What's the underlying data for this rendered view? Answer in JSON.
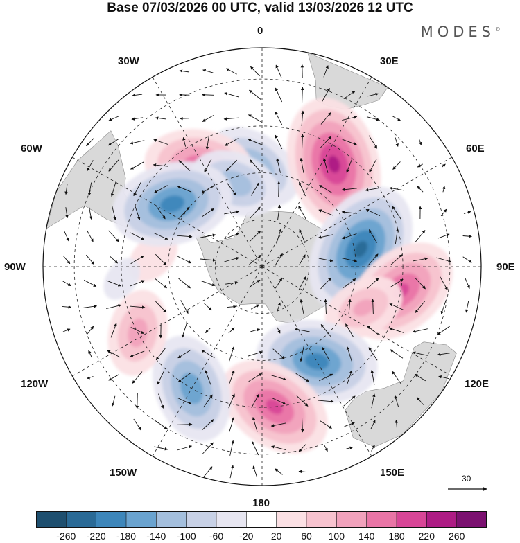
{
  "title": "Base 07/03/2026 00 UTC, valid 13/03/2026 12 UTC",
  "brand": "MODES",
  "brand_mark": "©",
  "longitude_labels": {
    "n0": "0",
    "e30": "30E",
    "e60": "60E",
    "e90": "90E",
    "e120": "120E",
    "e150": "150E",
    "s180": "180",
    "w150": "150W",
    "w120": "120W",
    "w90": "90W",
    "w60": "60W",
    "w30": "30W"
  },
  "reference_vector": {
    "label": "30"
  },
  "colors": {
    "neg_260": "#1e4f6f",
    "neg_220": "#2a6a96",
    "neg_180": "#3d86ba",
    "neg_140": "#6aa3cf",
    "neg_100": "#a4bfdd",
    "neg_60": "#c8d1e6",
    "neg_20": "#e7e6f1",
    "neutral": "#ffffff",
    "pos_20": "#fbe0e4",
    "pos_60": "#f7c3cf",
    "pos_100": "#f1a2bc",
    "pos_140": "#e975a6",
    "pos_180": "#d84697",
    "pos_220": "#ad1c84",
    "pos_260": "#7b1170",
    "over": "#561b7a",
    "land": "#d9d9d9"
  },
  "chart_data": {
    "type": "heatmap",
    "projection": "south polar stereographic",
    "field": "anomaly (shaded) with wind vectors",
    "levels": [
      -260,
      -220,
      -180,
      -140,
      -100,
      -60,
      -20,
      20,
      60,
      100,
      140,
      180,
      220,
      260
    ],
    "level_labels": [
      "-260",
      "-220",
      "-180",
      "-140",
      "-100",
      "-60",
      "-20",
      "20",
      "60",
      "100",
      "140",
      "180",
      "220",
      "260"
    ],
    "reference_vector": 30,
    "anomaly_centers": [
      {
        "lon": -5,
        "lat": -58,
        "value": -150
      },
      {
        "lon": -32,
        "lat": -52,
        "value": 170
      },
      {
        "lon": -18,
        "lat": -62,
        "value": -130
      },
      {
        "lon": 35,
        "lat": -50,
        "value": 230
      },
      {
        "lon": 80,
        "lat": -58,
        "value": -230
      },
      {
        "lon": 100,
        "lat": -45,
        "value": 190
      },
      {
        "lon": 112,
        "lat": -55,
        "value": 110
      },
      {
        "lon": 150,
        "lat": -55,
        "value": -200
      },
      {
        "lon": 175,
        "lat": -45,
        "value": 190
      },
      {
        "lon": -150,
        "lat": -45,
        "value": -170
      },
      {
        "lon": -118,
        "lat": -45,
        "value": 120
      },
      {
        "lon": -85,
        "lat": -55,
        "value": 60
      },
      {
        "lon": -55,
        "lat": -55,
        "value": -200
      },
      {
        "lon": -95,
        "lat": -45,
        "value": -40
      }
    ]
  }
}
